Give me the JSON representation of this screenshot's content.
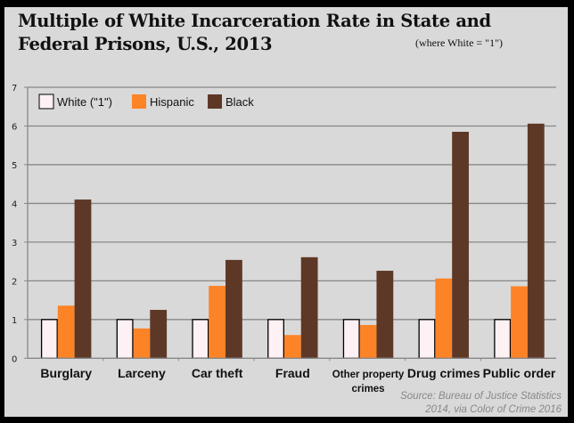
{
  "chart_data": {
    "type": "bar",
    "title": "Multiple of White Incarceration Rate in State and Federal Prisons, U.S., 2013",
    "subtitle": "(where White = \"1\")",
    "xlabel": "",
    "ylabel": "",
    "ylim": [
      0,
      7
    ],
    "yticks": [
      "0",
      "1",
      "2",
      "3",
      "4",
      "5",
      "6",
      "7"
    ],
    "grid": true,
    "legend_position": "top-left",
    "categories": [
      "Burglary",
      "Larceny",
      "Car theft",
      "Fraud",
      "Other property crimes",
      "Drug crimes",
      "Public order"
    ],
    "series": [
      {
        "name": "White (\"1\")",
        "color": "#fdf1f4",
        "values": [
          1,
          1,
          1,
          1,
          1,
          1,
          1
        ]
      },
      {
        "name": "Hispanic",
        "color": "#fd8327",
        "values": [
          1.36,
          0.77,
          1.87,
          0.6,
          0.86,
          2.06,
          1.86
        ]
      },
      {
        "name": "Black",
        "color": "#5e3826",
        "values": [
          4.1,
          1.25,
          2.54,
          2.61,
          2.26,
          5.85,
          6.06
        ]
      }
    ],
    "source": [
      "Source: Bureau of Justice Statistics",
      "2014, via Color of Crime 2016"
    ]
  }
}
